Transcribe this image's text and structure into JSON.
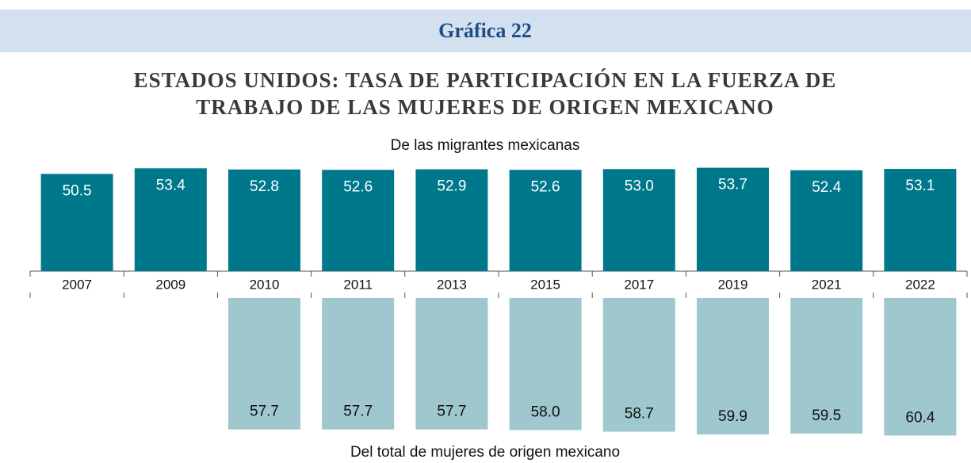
{
  "chart_data": {
    "type": "bar",
    "header": "Gráfica 22",
    "title": [
      "ESTADOS UNIDOS: TASA DE PARTICIPACIÓN EN LA FUERZA DE",
      "TRABAJO DE LAS MUJERES DE ORIGEN MEXICANO"
    ],
    "categories": [
      "2007",
      "2009",
      "2010",
      "2011",
      "2013",
      "2015",
      "2017",
      "2019",
      "2021",
      "2022"
    ],
    "series": [
      {
        "name": "De las migrantes mexicanas",
        "color": "#00788b",
        "values": [
          50.5,
          53.4,
          52.8,
          52.6,
          52.9,
          52.6,
          53.0,
          53.7,
          52.4,
          53.1
        ],
        "value_labels": [
          "50.5",
          "53.4",
          "52.8",
          "52.6",
          "52.9",
          "52.6",
          "53.0",
          "53.7",
          "52.4",
          "53.1"
        ]
      },
      {
        "name": "Del total de mujeres de origen mexicano",
        "color": "#9fc7ce",
        "axis": "y2",
        "values": [
          null,
          null,
          57.7,
          57.7,
          57.7,
          58.0,
          58.7,
          59.9,
          59.5,
          60.4
        ],
        "value_labels": [
          null,
          null,
          "57.7",
          "57.7",
          "57.7",
          "58.0",
          "58.7",
          "59.9",
          "59.5",
          "60.4"
        ]
      }
    ],
    "ylim": [
      0,
      56
    ],
    "y2lim": [
      0,
      62
    ]
  }
}
